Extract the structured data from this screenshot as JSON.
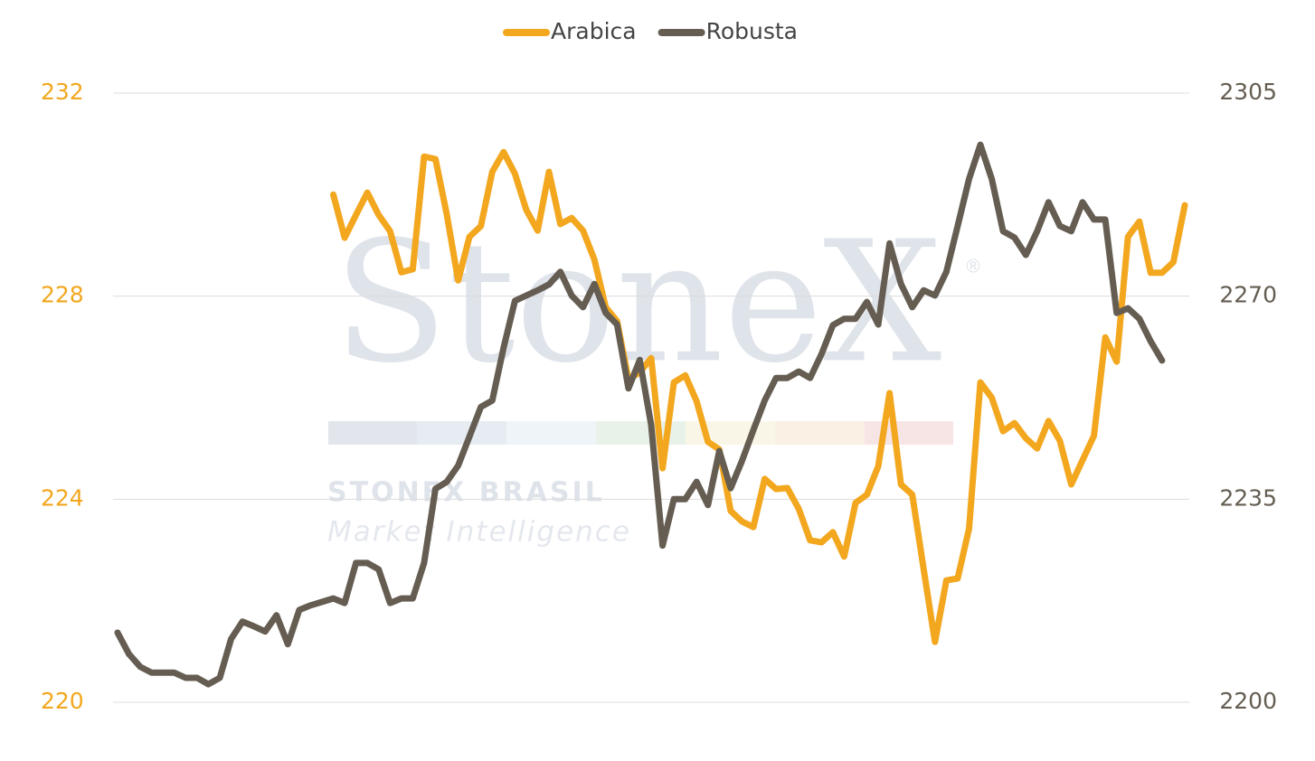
{
  "chart_data": {
    "type": "line",
    "legend": "top",
    "grid": true,
    "watermark": {
      "logo": "StoneX",
      "mark": "®",
      "line1": "STONEX BRASIL",
      "line2": "Market Intelligence"
    },
    "categories": [
      null,
      null,
      null,
      null,
      null,
      null,
      null,
      null,
      null,
      null,
      null,
      null,
      null,
      null,
      null,
      null,
      null,
      null,
      null,
      null,
      null,
      null,
      null,
      null,
      null,
      null,
      null,
      null,
      null,
      null,
      null,
      null,
      null,
      null,
      null,
      null,
      null,
      null,
      null,
      null,
      null,
      null,
      null,
      null,
      null,
      null,
      null,
      null,
      null,
      null,
      null,
      null,
      null,
      null,
      null,
      null,
      null,
      null,
      null,
      null,
      null,
      null,
      null,
      null,
      null,
      null,
      null,
      null,
      null,
      null,
      null,
      null,
      null,
      null,
      null,
      null,
      null,
      null,
      null,
      null,
      null,
      null,
      null,
      null,
      null,
      null,
      null,
      null,
      null,
      null,
      null,
      null,
      null,
      null,
      null
    ],
    "ylim": [
      220,
      232
    ],
    "yticks": [
      220,
      224,
      228,
      232
    ],
    "y2lim": [
      2200,
      2305
    ],
    "y2ticks": [
      2200,
      2235,
      2270,
      2305
    ],
    "series": [
      {
        "name": "Arabica",
        "color": "#f2a71e",
        "axis": "y",
        "values": [
          null,
          null,
          null,
          null,
          null,
          null,
          null,
          null,
          null,
          null,
          null,
          null,
          null,
          null,
          null,
          null,
          null,
          null,
          null,
          230.0,
          229.15,
          229.6,
          230.04,
          229.6,
          229.28,
          228.47,
          228.53,
          230.75,
          230.7,
          229.61,
          228.31,
          229.17,
          229.38,
          230.45,
          230.84,
          230.41,
          229.7,
          229.29,
          230.45,
          229.42,
          229.54,
          229.29,
          228.72,
          227.78,
          227.51,
          226.36,
          226.5,
          226.78,
          224.61,
          226.3,
          226.44,
          225.93,
          225.13,
          224.98,
          223.77,
          223.56,
          223.45,
          224.4,
          224.2,
          224.22,
          223.81,
          223.19,
          223.15,
          223.35,
          222.87,
          223.93,
          224.09,
          224.65,
          226.09,
          224.29,
          224.09,
          222.62,
          221.19,
          222.4,
          222.44,
          223.42,
          226.3,
          226.0,
          225.34,
          225.5,
          225.2,
          225.0,
          225.54,
          225.15,
          224.29,
          224.77,
          225.25,
          227.19,
          226.71,
          229.17,
          229.47,
          228.46,
          228.46,
          228.67,
          229.79
        ]
      },
      {
        "name": "Robusta",
        "color": "#655d52",
        "axis": "y2",
        "values": [
          2212,
          2208.3,
          2206.1,
          2205.1,
          2205.1,
          2205.1,
          2204.2,
          2204.2,
          2203.1,
          2204.2,
          2210.9,
          2213.9,
          2213.1,
          2212.2,
          2215,
          2210,
          2215.9,
          2216.7,
          2217.3,
          2217.9,
          2217.1,
          2224,
          2224,
          2222.9,
          2217.1,
          2217.9,
          2217.9,
          2224,
          2236.8,
          2238,
          2240.8,
          2245.8,
          2250.9,
          2252,
          2261.1,
          2269.2,
          2270.1,
          2271,
          2272,
          2274.2,
          2270.1,
          2268.1,
          2272.1,
          2267.1,
          2265.1,
          2254.1,
          2259,
          2247.8,
          2227,
          2235,
          2235,
          2238,
          2234,
          2243.3,
          2236.9,
          2241.6,
          2246.9,
          2252,
          2255.9,
          2255.9,
          2257,
          2255.9,
          2260,
          2265,
          2266.1,
          2266.1,
          2269,
          2265.1,
          2279.1,
          2272.1,
          2268.1,
          2271,
          2270.1,
          2274.2,
          2282.1,
          2290.2,
          2296.1,
          2290.2,
          2281.2,
          2280.1,
          2277.1,
          2281.2,
          2286.2,
          2282.1,
          2281.2,
          2286.2,
          2283.2,
          2283.2,
          2267.1,
          2267.9,
          2266.1,
          2262.2,
          2258.9,
          null,
          null
        ]
      }
    ]
  }
}
